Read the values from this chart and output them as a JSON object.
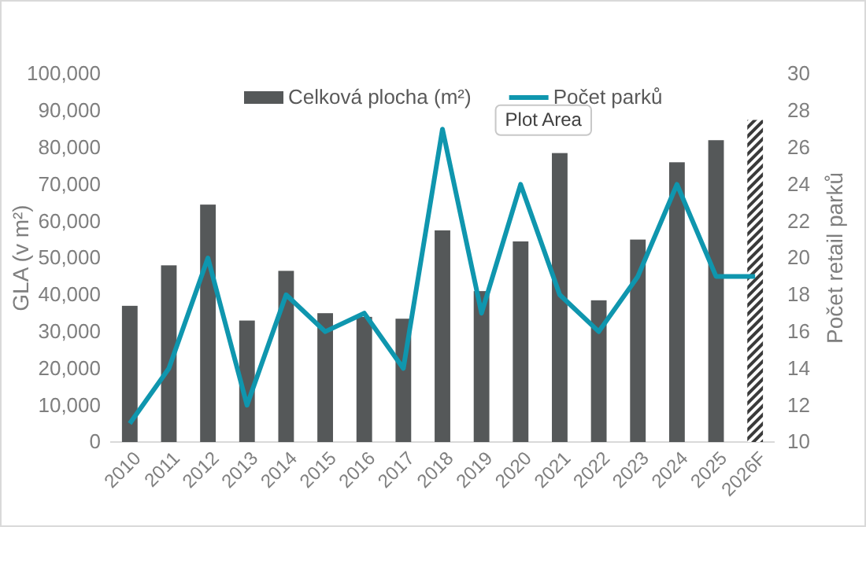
{
  "chart_data": {
    "type": "bar",
    "categories": [
      "2010",
      "2011",
      "2012",
      "2013",
      "2014",
      "2015",
      "2016",
      "2017",
      "2018",
      "2019",
      "2020",
      "2021",
      "2022",
      "2023",
      "2024",
      "2025",
      "2026F"
    ],
    "series": [
      {
        "name": "Celková plocha (m²)",
        "color": "#555859",
        "colors": [
          "#555859",
          "#555859",
          "#555859",
          "#555859",
          "#555859",
          "#555859",
          "#555859",
          "#555859",
          "#555859",
          "#555859",
          "#555859",
          "#555859",
          "#555859",
          "#555859",
          "#555859",
          "#555859",
          "#3a3a3a"
        ],
        "values": [
          37000,
          48000,
          64500,
          33000,
          46500,
          35000,
          34000,
          33500,
          57500,
          41000,
          54500,
          78500,
          38500,
          55000,
          76000,
          82000,
          87500
        ]
      },
      {
        "name": "Počet parků",
        "type": "line",
        "axis": "y2",
        "color": "#0f96ae",
        "values": [
          11,
          14,
          20,
          12,
          18,
          16,
          17,
          14,
          27,
          17,
          24,
          18,
          16,
          19,
          24,
          19,
          19
        ]
      }
    ],
    "ylabel": "GLA (v m²)",
    "y2label": "Počet retail parků",
    "ylim": [
      0,
      100000
    ],
    "yticks": [
      {
        "value": 0,
        "label": "0"
      },
      {
        "value": 10000,
        "label": "10,000"
      },
      {
        "value": 20000,
        "label": "20,000"
      },
      {
        "value": 30000,
        "label": "30,000"
      },
      {
        "value": 40000,
        "label": "40,000"
      },
      {
        "value": 50000,
        "label": "50,000"
      },
      {
        "value": 60000,
        "label": "60,000"
      },
      {
        "value": 70000,
        "label": "70,000"
      },
      {
        "value": 80000,
        "label": "80,000"
      },
      {
        "value": 90000,
        "label": "90,000"
      },
      {
        "value": 100000,
        "label": "100,000"
      }
    ],
    "y2lim": [
      10,
      30
    ],
    "y2ticks": [
      10,
      12,
      14,
      16,
      18,
      20,
      22,
      24,
      26,
      28,
      30
    ],
    "legend": "top",
    "grid": false,
    "marker": "none",
    "line_style": "solid",
    "annotations": [
      "Plot Area"
    ]
  }
}
